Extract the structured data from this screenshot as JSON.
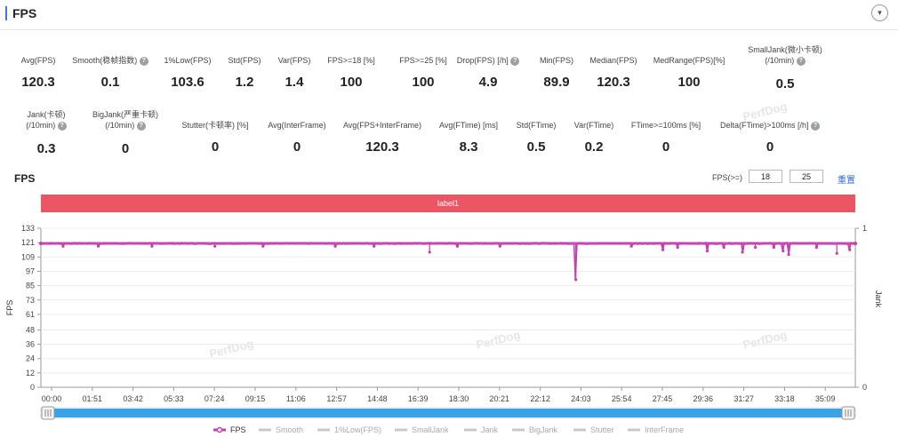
{
  "header": {
    "title": "FPS"
  },
  "metrics_row1": [
    {
      "label": "Avg(FPS)",
      "value": "120.3",
      "help": false
    },
    {
      "label": "Smooth(稳帧指数)",
      "value": "0.1",
      "help": true
    },
    {
      "label": "1%Low(FPS)",
      "value": "103.6",
      "help": false
    },
    {
      "label": "Std(FPS)",
      "value": "1.2",
      "help": false
    },
    {
      "label": "Var(FPS)",
      "value": "1.4",
      "help": false
    },
    {
      "label": "FPS>=18 [%]",
      "value": "100",
      "help": false
    },
    {
      "label": "FPS>=25 [%]",
      "value": "100",
      "help": false
    },
    {
      "label": "Drop(FPS) [/h]",
      "value": "4.9",
      "help": true
    },
    {
      "label": "Min(FPS)",
      "value": "89.9",
      "help": false
    },
    {
      "label": "Median(FPS)",
      "value": "120.3",
      "help": false
    },
    {
      "label": "MedRange(FPS)[%]",
      "value": "100",
      "help": false
    },
    {
      "label": "SmallJank(微小卡顿)",
      "label2": "(/10min)",
      "value": "0.5",
      "help": true
    }
  ],
  "metrics_row2": [
    {
      "label": "Jank(卡顿)",
      "label2": "(/10min)",
      "value": "0.3",
      "help": true
    },
    {
      "label": "BigJank(严重卡顿)",
      "label2": "(/10min)",
      "value": "0",
      "help": true
    },
    {
      "label": "Stutter(卡顿率) [%]",
      "value": "0",
      "help": false
    },
    {
      "label": "Avg(InterFrame)",
      "value": "0",
      "help": false
    },
    {
      "label": "Avg(FPS+InterFrame)",
      "value": "120.3",
      "help": false
    },
    {
      "label": "Avg(FTime) [ms]",
      "value": "8.3",
      "help": false
    },
    {
      "label": "Std(FTime)",
      "value": "0.5",
      "help": false
    },
    {
      "label": "Var(FTime)",
      "value": "0.2",
      "help": false
    },
    {
      "label": "FTime>=100ms [%]",
      "value": "0",
      "help": false
    },
    {
      "label": "Delta(FTime)>100ms [/h]",
      "value": "0",
      "help": true
    }
  ],
  "chart_section": {
    "title": "FPS",
    "filter_label": "FPS(>=)",
    "filter_value1": "18",
    "filter_value2": "25",
    "reset_label": "重置",
    "band_label": "label1",
    "watermark": "PerfDog"
  },
  "colors": {
    "fps_series": "#c340b0",
    "label_band": "#ec5563",
    "slider": "#3aa2e6",
    "accent": "#3a7bd5"
  },
  "chart_data": {
    "type": "line",
    "ylabel": "FPS",
    "y2label": "Jank",
    "ylim": [
      0,
      133
    ],
    "y_ticks": [
      0,
      12,
      24,
      36,
      48,
      61,
      73,
      85,
      97,
      109,
      121,
      133
    ],
    "y2_ticks": [
      0,
      1
    ],
    "x_ticks": [
      "00:00",
      "01:51",
      "03:42",
      "05:33",
      "07:24",
      "09:15",
      "11:06",
      "12:57",
      "14:48",
      "16:39",
      "18:30",
      "20:21",
      "22:12",
      "24:03",
      "25:54",
      "27:45",
      "29:36",
      "31:27",
      "33:18",
      "35:09"
    ],
    "xlim_seconds": [
      0,
      2200
    ],
    "grid": true,
    "legend_position": "bottom",
    "series": [
      {
        "name": "FPS",
        "baseline": 120.3,
        "dips": [
          [
            60,
            118
          ],
          [
            155,
            118
          ],
          [
            300,
            118
          ],
          [
            470,
            118
          ],
          [
            600,
            118
          ],
          [
            795,
            118
          ],
          [
            900,
            118
          ],
          [
            1050,
            113
          ],
          [
            1125,
            118
          ],
          [
            1240,
            118
          ],
          [
            1445,
            90
          ],
          [
            1595,
            118
          ],
          [
            1680,
            115
          ],
          [
            1720,
            117
          ],
          [
            1800,
            114
          ],
          [
            1845,
            117
          ],
          [
            1895,
            113
          ],
          [
            1930,
            117
          ],
          [
            1980,
            117
          ],
          [
            2005,
            114
          ],
          [
            2020,
            111
          ],
          [
            2095,
            117
          ],
          [
            2150,
            112
          ],
          [
            2185,
            115
          ]
        ]
      }
    ],
    "legend": [
      {
        "name": "FPS",
        "active": true
      },
      {
        "name": "Smooth",
        "active": false
      },
      {
        "name": "1%Low(FPS)",
        "active": false
      },
      {
        "name": "SmallJank",
        "active": false
      },
      {
        "name": "Jank",
        "active": false
      },
      {
        "name": "BigJank",
        "active": false
      },
      {
        "name": "Stutter",
        "active": false
      },
      {
        "name": "InterFrame",
        "active": false
      }
    ]
  }
}
